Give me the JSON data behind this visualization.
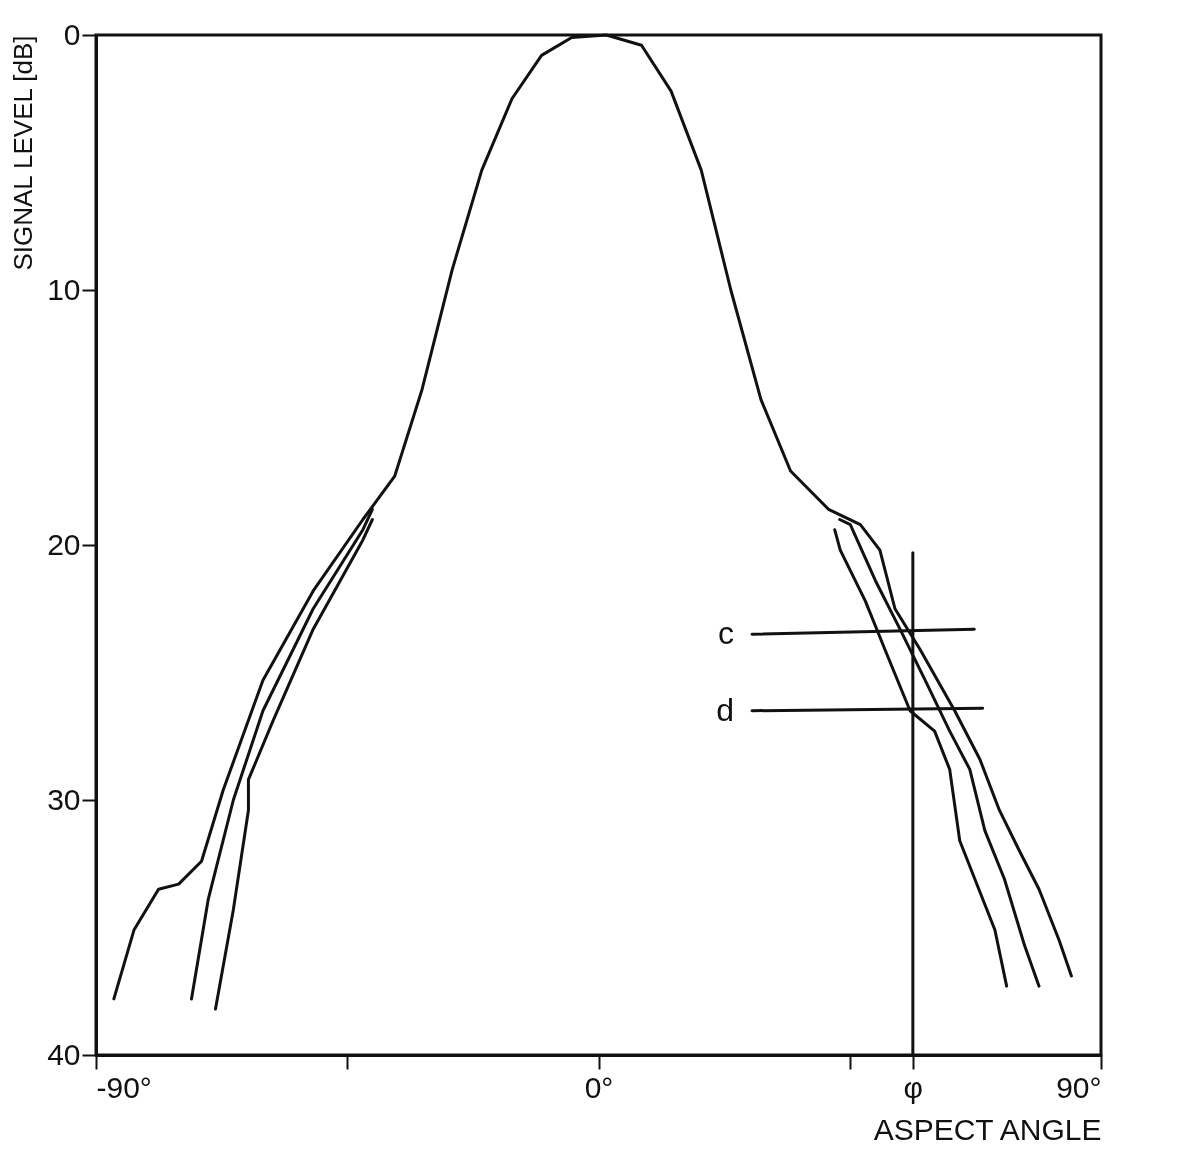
{
  "chart_data": {
    "type": "line",
    "xlabel": "ASPECT ANGLE",
    "ylabel": "SIGNAL LEVEL [dB]",
    "xlim": [
      -90,
      90
    ],
    "ylim": [
      40,
      0
    ],
    "xticks": [
      {
        "value": -90,
        "label": "-90°"
      },
      {
        "value": -45,
        "label": null
      },
      {
        "value": 0,
        "label": "0°"
      },
      {
        "value": 45,
        "label": null
      },
      {
        "value": 56.3,
        "label": "φ"
      },
      {
        "value": 90,
        "label": "90°"
      }
    ],
    "yticks": [
      0,
      10,
      20,
      30,
      40
    ],
    "grid": false,
    "marker": "none",
    "line_style": "solid",
    "series": [
      {
        "color": "#111111",
        "x": [
          -86.8,
          -83.2,
          -78.8,
          -75.2,
          -71.1,
          -67.2,
          -60.1,
          -51.1,
          -42.2,
          -36.5,
          -31.6,
          -26.2,
          -20.9,
          -15.5,
          -10.2,
          -4.8,
          1.4,
          7.7,
          13,
          18.4,
          23.7,
          29.1,
          34.4,
          41.2,
          46.9,
          50.4,
          53.1,
          57.6,
          63.8,
          68.3,
          71.8,
          75.4,
          78.9,
          82.5,
          84.7
        ],
        "values": [
          37.8,
          35.1,
          33.5,
          33.3,
          32.4,
          29.6,
          25.3,
          21.8,
          19,
          17.3,
          13.9,
          9.2,
          5.3,
          2.5,
          0.8,
          0.1,
          0,
          0.4,
          2.2,
          5.3,
          10,
          14.3,
          17.1,
          18.6,
          19.2,
          20.2,
          22.5,
          24.1,
          26.5,
          28.4,
          30.4,
          32,
          33.5,
          35.5,
          36.9
        ]
      },
      {
        "color": "#111111",
        "x": [
          -40.5,
          -42.2,
          -51.1,
          -60.1,
          -65.4,
          -69.9,
          -72.9
        ],
        "values": [
          18.6,
          19.4,
          22.5,
          26.5,
          30,
          33.9,
          37.8
        ]
      },
      {
        "color": "#111111",
        "x": [
          -40.5,
          -42.2,
          -51.1,
          -58.3,
          -62.7,
          -62.7,
          -65.4,
          -68.6
        ],
        "values": [
          19,
          19.8,
          23.3,
          26.9,
          29.2,
          30.4,
          34.3,
          38.2
        ]
      },
      {
        "color": "#111111",
        "x": [
          42.3,
          43.3,
          47.8,
          51.3,
          55.8,
          60.2,
          62.9,
          64.7,
          67.4,
          71,
          73.1
        ],
        "values": [
          19.4,
          20.2,
          22.2,
          24.1,
          26.5,
          27.3,
          28.8,
          31.6,
          33.1,
          35.1,
          37.3
        ]
      },
      {
        "color": "#111111",
        "x": [
          43.2,
          45.1,
          49.6,
          54,
          58.5,
          62.9,
          66.5,
          69.2,
          72.7,
          76.3,
          78.9
        ],
        "values": [
          19,
          19.2,
          21.4,
          23.3,
          25.3,
          27.3,
          28.8,
          31.2,
          33.1,
          35.7,
          37.3
        ]
      },
      {
        "color": "#111111",
        "x": [
          27.5,
          67.3
        ],
        "values": [
          23.5,
          23.3
        ]
      },
      {
        "color": "#111111",
        "x": [
          27.5,
          68.8
        ],
        "values": [
          26.5,
          26.4
        ]
      },
      {
        "color": "#111111",
        "x": [
          56.3,
          56.3
        ],
        "values": [
          20.3,
          40
        ]
      }
    ],
    "annotations": [
      {
        "text": "c",
        "x": 27.5,
        "y": 23.5
      },
      {
        "text": "d",
        "x": 27.5,
        "y": 26.5
      }
    ]
  }
}
